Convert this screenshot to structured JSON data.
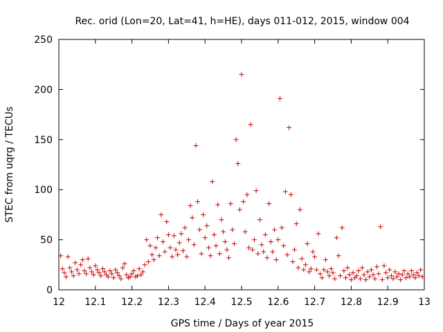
{
  "chart_data": {
    "type": "scatter",
    "title": "Rec. orid (Lon=20, Lat=41, h=HE), days 011-012, 2015, window 004",
    "xlabel": "GPS time / Days of year 2015",
    "ylabel": "STEC from uqrg / TECUs",
    "xlim": [
      12,
      13
    ],
    "ylim": [
      0,
      250
    ],
    "xticks": [
      "12",
      "12.1",
      "12.2",
      "12.3",
      "12.4",
      "12.5",
      "12.6",
      "12.7",
      "12.8",
      "12.9",
      "13"
    ],
    "yticks": [
      "0",
      "50",
      "100",
      "150",
      "200",
      "250"
    ],
    "marker": "plus",
    "color": "#cc0000",
    "grid": false,
    "legend": "none",
    "series": [
      {
        "points": [
          [
            12.005,
            34
          ],
          [
            12.01,
            21
          ],
          [
            12.015,
            17
          ],
          [
            12.02,
            13
          ],
          [
            12.025,
            33
          ],
          [
            12.03,
            22
          ],
          [
            12.035,
            18
          ],
          [
            12.04,
            14
          ],
          [
            12.045,
            27
          ],
          [
            12.05,
            20
          ],
          [
            12.055,
            16
          ],
          [
            12.06,
            25
          ],
          [
            12.065,
            30
          ],
          [
            12.07,
            19
          ],
          [
            12.075,
            16
          ],
          [
            12.08,
            31
          ],
          [
            12.085,
            22
          ],
          [
            12.09,
            18
          ],
          [
            12.095,
            15
          ],
          [
            12.1,
            24
          ],
          [
            12.105,
            20
          ],
          [
            12.11,
            17
          ],
          [
            12.115,
            14
          ],
          [
            12.12,
            21
          ],
          [
            12.125,
            18
          ],
          [
            12.13,
            15
          ],
          [
            12.135,
            13
          ],
          [
            12.14,
            19
          ],
          [
            12.145,
            16
          ],
          [
            12.15,
            12
          ],
          [
            12.155,
            20
          ],
          [
            12.16,
            17
          ],
          [
            12.165,
            14
          ],
          [
            12.17,
            11
          ],
          [
            12.175,
            22
          ],
          [
            12.18,
            26
          ],
          [
            12.185,
            15
          ],
          [
            12.19,
            12
          ],
          [
            12.195,
            13
          ],
          [
            12.2,
            16
          ],
          [
            12.205,
            19
          ],
          [
            12.21,
            13
          ],
          [
            12.215,
            14
          ],
          [
            12.22,
            21
          ],
          [
            12.225,
            15
          ],
          [
            12.23,
            18
          ],
          [
            12.235,
            25
          ],
          [
            12.24,
            50
          ],
          [
            12.245,
            28
          ],
          [
            12.25,
            44
          ],
          [
            12.255,
            35
          ],
          [
            12.26,
            30
          ],
          [
            12.265,
            42
          ],
          [
            12.27,
            52
          ],
          [
            12.275,
            34
          ],
          [
            12.28,
            75
          ],
          [
            12.285,
            48
          ],
          [
            12.29,
            38
          ],
          [
            12.295,
            68
          ],
          [
            12.3,
            55
          ],
          [
            12.305,
            42
          ],
          [
            12.31,
            33
          ],
          [
            12.315,
            54
          ],
          [
            12.32,
            40
          ],
          [
            12.325,
            35
          ],
          [
            12.33,
            47
          ],
          [
            12.335,
            56
          ],
          [
            12.34,
            39
          ],
          [
            12.345,
            62
          ],
          [
            12.35,
            33
          ],
          [
            12.355,
            50
          ],
          [
            12.36,
            84
          ],
          [
            12.365,
            72
          ],
          [
            12.37,
            45
          ],
          [
            12.375,
            144
          ],
          [
            12.38,
            88
          ],
          [
            12.385,
            60
          ],
          [
            12.39,
            36
          ],
          [
            12.395,
            75
          ],
          [
            12.4,
            52
          ],
          [
            12.405,
            64
          ],
          [
            12.41,
            42
          ],
          [
            12.415,
            34
          ],
          [
            12.42,
            108
          ],
          [
            12.425,
            55
          ],
          [
            12.43,
            44
          ],
          [
            12.435,
            85
          ],
          [
            12.44,
            36
          ],
          [
            12.445,
            70
          ],
          [
            12.45,
            58
          ],
          [
            12.455,
            48
          ],
          [
            12.46,
            40
          ],
          [
            12.465,
            32
          ],
          [
            12.47,
            86
          ],
          [
            12.475,
            60
          ],
          [
            12.48,
            46
          ],
          [
            12.485,
            150
          ],
          [
            12.49,
            126
          ],
          [
            12.495,
            80
          ],
          [
            12.5,
            215
          ],
          [
            12.505,
            88
          ],
          [
            12.51,
            58
          ],
          [
            12.515,
            95
          ],
          [
            12.52,
            42
          ],
          [
            12.525,
            165
          ],
          [
            12.53,
            40
          ],
          [
            12.535,
            50
          ],
          [
            12.54,
            99
          ],
          [
            12.545,
            36
          ],
          [
            12.55,
            70
          ],
          [
            12.555,
            45
          ],
          [
            12.56,
            38
          ],
          [
            12.565,
            55
          ],
          [
            12.57,
            32
          ],
          [
            12.575,
            86
          ],
          [
            12.58,
            48
          ],
          [
            12.585,
            38
          ],
          [
            12.59,
            60
          ],
          [
            12.595,
            30
          ],
          [
            12.6,
            50
          ],
          [
            12.605,
            191
          ],
          [
            12.61,
            62
          ],
          [
            12.615,
            44
          ],
          [
            12.62,
            98
          ],
          [
            12.625,
            35
          ],
          [
            12.63,
            162
          ],
          [
            12.635,
            95
          ],
          [
            12.64,
            28
          ],
          [
            12.645,
            40
          ],
          [
            12.65,
            66
          ],
          [
            12.655,
            22
          ],
          [
            12.66,
            80
          ],
          [
            12.665,
            31
          ],
          [
            12.67,
            20
          ],
          [
            12.675,
            25
          ],
          [
            12.68,
            46
          ],
          [
            12.685,
            18
          ],
          [
            12.69,
            21
          ],
          [
            12.695,
            38
          ],
          [
            12.7,
            33
          ],
          [
            12.705,
            20
          ],
          [
            12.71,
            56
          ],
          [
            12.715,
            16
          ],
          [
            12.72,
            12
          ],
          [
            12.725,
            20
          ],
          [
            12.73,
            30
          ],
          [
            12.735,
            18
          ],
          [
            12.74,
            14
          ],
          [
            12.745,
            21
          ],
          [
            12.75,
            17
          ],
          [
            12.755,
            11
          ],
          [
            12.76,
            52
          ],
          [
            12.765,
            34
          ],
          [
            12.77,
            14
          ],
          [
            12.775,
            62
          ],
          [
            12.78,
            19
          ],
          [
            12.785,
            12
          ],
          [
            12.79,
            22
          ],
          [
            12.795,
            15
          ],
          [
            12.8,
            10
          ],
          [
            12.805,
            17
          ],
          [
            12.81,
            12
          ],
          [
            12.815,
            14
          ],
          [
            12.82,
            19
          ],
          [
            12.825,
            11
          ],
          [
            12.83,
            22
          ],
          [
            12.835,
            15
          ],
          [
            12.84,
            10
          ],
          [
            12.845,
            18
          ],
          [
            12.85,
            13
          ],
          [
            12.855,
            20
          ],
          [
            12.86,
            15
          ],
          [
            12.865,
            11
          ],
          [
            12.87,
            23
          ],
          [
            12.875,
            16
          ],
          [
            12.88,
            63
          ],
          [
            12.885,
            10
          ],
          [
            12.89,
            24
          ],
          [
            12.895,
            17
          ],
          [
            12.9,
            12
          ],
          [
            12.905,
            20
          ],
          [
            12.91,
            14
          ],
          [
            12.915,
            11
          ],
          [
            12.92,
            18
          ],
          [
            12.925,
            13
          ],
          [
            12.93,
            16
          ],
          [
            12.935,
            10
          ],
          [
            12.94,
            15
          ],
          [
            12.945,
            19
          ],
          [
            12.95,
            12
          ],
          [
            12.955,
            16
          ],
          [
            12.96,
            13
          ],
          [
            12.965,
            19
          ],
          [
            12.97,
            15
          ],
          [
            12.975,
            12
          ],
          [
            12.98,
            17
          ],
          [
            12.985,
            14
          ],
          [
            12.99,
            20
          ],
          [
            12.995,
            13
          ]
        ]
      }
    ]
  }
}
